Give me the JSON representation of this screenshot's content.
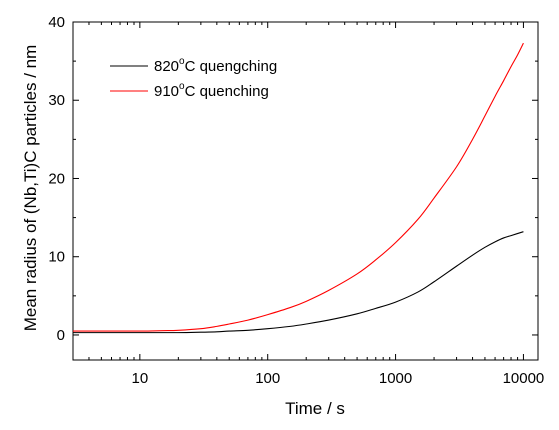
{
  "chart_data": {
    "type": "line",
    "title": "",
    "xlabel": "Time / s",
    "ylabel": "Mean radius of (Nb,Ti)C particles / nm",
    "xscale": "log",
    "xlim": [
      3,
      13000
    ],
    "ylim": [
      -3.2,
      40
    ],
    "xticks": [
      10,
      100,
      1000,
      10000
    ],
    "xtick_labels": [
      "10",
      "100",
      "1000",
      "10000"
    ],
    "yticks": [
      0,
      10,
      20,
      30,
      40
    ],
    "ytick_labels": [
      "0",
      "10",
      "20",
      "30",
      "40"
    ],
    "grid": false,
    "legend_position": "top-left",
    "series": [
      {
        "name": "820°C quengching",
        "name_base": "820",
        "name_degree": "o",
        "name_rest": "C quengching",
        "color": "#000000",
        "x": [
          3,
          5,
          10,
          20,
          30,
          40,
          50,
          70,
          100,
          150,
          200,
          300,
          500,
          700,
          1000,
          1500,
          2000,
          3000,
          4000,
          5000,
          6000,
          7000,
          8000,
          10000
        ],
        "y": [
          0.3,
          0.3,
          0.3,
          0.3,
          0.35,
          0.4,
          0.5,
          0.6,
          0.8,
          1.1,
          1.4,
          1.9,
          2.7,
          3.4,
          4.2,
          5.5,
          6.8,
          8.8,
          10.2,
          11.2,
          11.9,
          12.4,
          12.7,
          13.2
        ]
      },
      {
        "name": "910°C quenching",
        "name_base": "910",
        "name_degree": "o",
        "name_rest": "C quenching",
        "color": "#ff0000",
        "x": [
          3,
          5,
          10,
          15,
          20,
          30,
          40,
          50,
          70,
          100,
          150,
          200,
          300,
          500,
          700,
          1000,
          1500,
          2000,
          3000,
          4000,
          5000,
          6000,
          7000,
          8000,
          9000,
          10000
        ],
        "y": [
          0.5,
          0.5,
          0.5,
          0.55,
          0.6,
          0.8,
          1.1,
          1.4,
          1.9,
          2.6,
          3.5,
          4.3,
          5.7,
          7.8,
          9.6,
          11.8,
          14.8,
          17.5,
          21.5,
          25.0,
          28.0,
          30.5,
          32.5,
          34.3,
          35.8,
          37.3
        ]
      }
    ]
  }
}
